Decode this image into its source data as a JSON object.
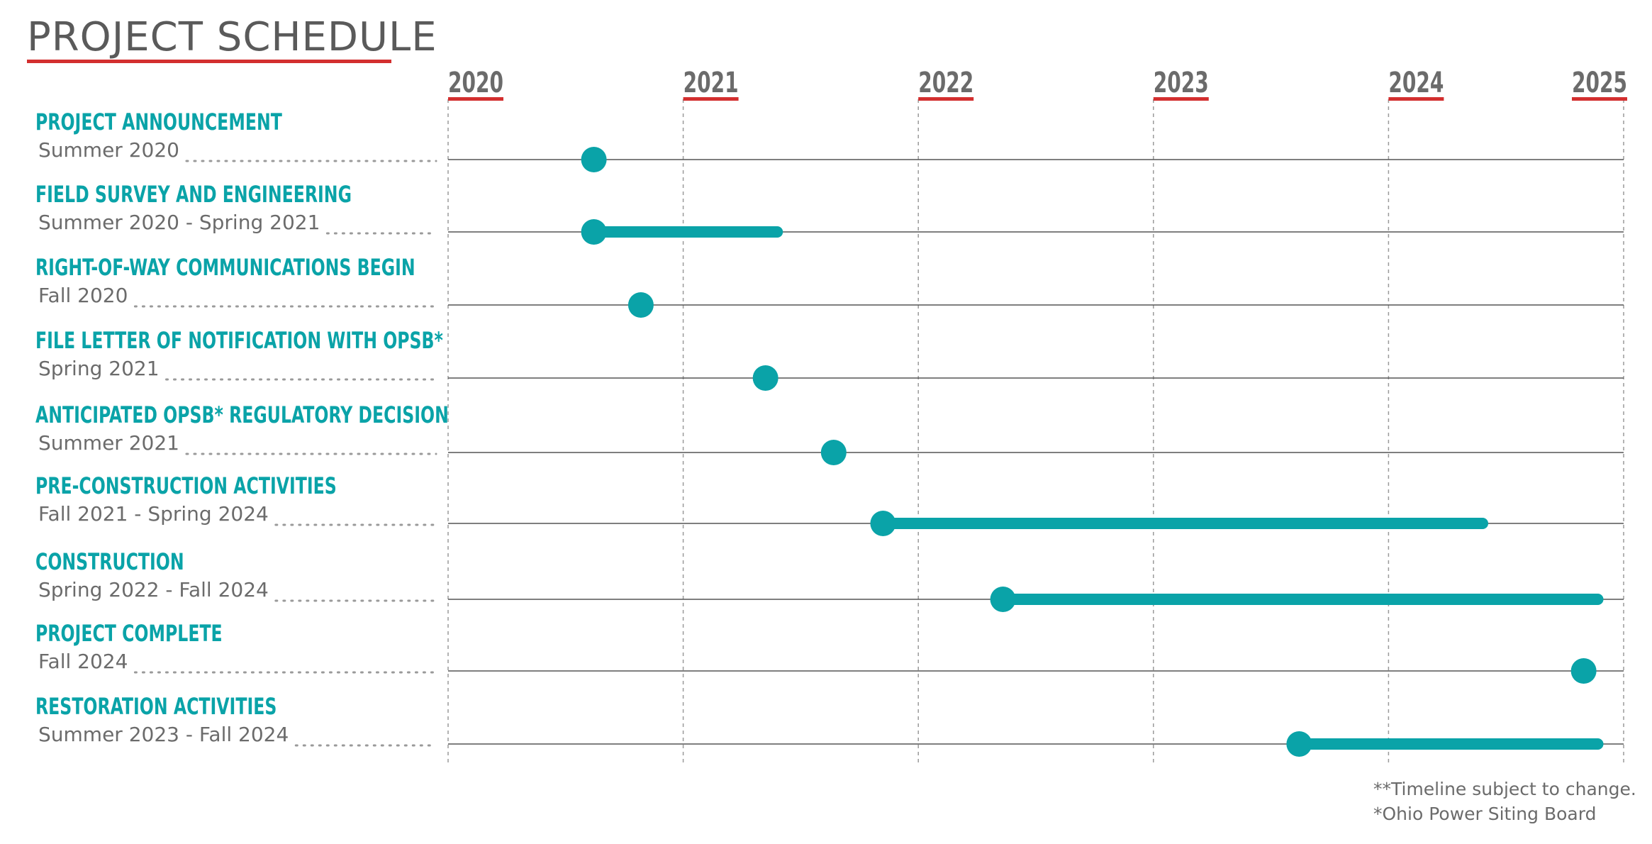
{
  "title": "PROJECT SCHEDULE",
  "colors": {
    "accent": "#0aa3a8",
    "underline": "#d32f2f",
    "text": "#5a5a5a",
    "grid": "#9a9a9a",
    "row_line": "#555555"
  },
  "chart_data": {
    "type": "gantt",
    "x_axis": {
      "min": 2020,
      "max": 2025,
      "ticks": [
        "2020",
        "2021",
        "2022",
        "2023",
        "2024",
        "2025"
      ]
    },
    "grid": true,
    "tasks": [
      {
        "name": "PROJECT ANNOUNCEMENT",
        "date_label": "Summer 2020",
        "start": 2020.62,
        "end": 2020.62
      },
      {
        "name": "FIELD SURVEY AND ENGINEERING",
        "date_label": "Summer 2020 - Spring 2021",
        "start": 2020.62,
        "end": 2021.4
      },
      {
        "name": "RIGHT-OF-WAY COMMUNICATIONS BEGIN",
        "date_label": "Fall 2020",
        "start": 2020.82,
        "end": 2020.82
      },
      {
        "name": "FILE LETTER OF NOTIFICATION WITH OPSB*",
        "date_label": "Spring 2021",
        "start": 2021.35,
        "end": 2021.35
      },
      {
        "name": "ANTICIPATED OPSB* REGULATORY DECISION",
        "date_label": "Summer 2021",
        "start": 2021.64,
        "end": 2021.64
      },
      {
        "name": "PRE-CONSTRUCTION ACTIVITIES",
        "date_label": "Fall 2021 - Spring 2024",
        "start": 2021.85,
        "end": 2024.4
      },
      {
        "name": "CONSTRUCTION",
        "date_label": "Spring 2022 - Fall 2024",
        "start": 2022.36,
        "end": 2024.89
      },
      {
        "name": "PROJECT COMPLETE",
        "date_label": "Fall 2024",
        "start": 2024.83,
        "end": 2024.83
      },
      {
        "name": "RESTORATION ACTIVITIES",
        "date_label": "Summer 2023 - Fall 2024",
        "start": 2023.62,
        "end": 2024.89
      }
    ]
  },
  "footnotes": [
    "**Timeline subject to change.",
    "*Ohio Power Siting Board"
  ]
}
